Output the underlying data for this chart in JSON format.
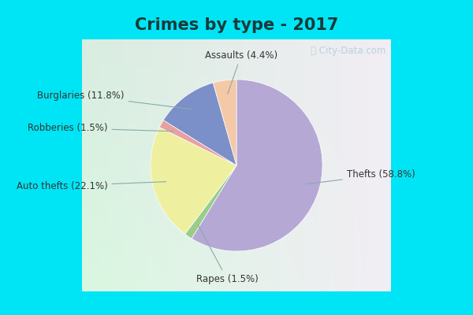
{
  "title": "Crimes by type - 2017",
  "title_fontsize": 15,
  "title_fontweight": "bold",
  "slices_ordered": [
    {
      "label": "Thefts",
      "pct": 58.8,
      "color": "#b5a8d5"
    },
    {
      "label": "Rapes",
      "pct": 1.5,
      "color": "#9acd8a"
    },
    {
      "label": "Auto thefts",
      "pct": 22.1,
      "color": "#eef0a0"
    },
    {
      "label": "Robberies",
      "pct": 1.5,
      "color": "#e8a0a0"
    },
    {
      "label": "Burglaries",
      "pct": 11.8,
      "color": "#7b8fc9"
    },
    {
      "label": "Assaults",
      "pct": 4.4,
      "color": "#f4c9a8"
    }
  ],
  "background_cyan": "#00e5f5",
  "background_inner_tl": "#d4ede3",
  "background_inner_br": "#e8f0ee",
  "watermark": "ⓘ City-Data.com",
  "label_fontsize": 8.5,
  "startangle": 90,
  "label_positions": {
    "Thefts": [
      1.18,
      -0.1,
      "left"
    ],
    "Rapes": [
      -0.1,
      -1.22,
      "center"
    ],
    "Auto thefts": [
      -1.38,
      -0.22,
      "right"
    ],
    "Robberies": [
      -1.38,
      0.4,
      "right"
    ],
    "Burglaries": [
      -1.2,
      0.75,
      "right"
    ],
    "Assaults": [
      0.05,
      1.18,
      "center"
    ]
  }
}
